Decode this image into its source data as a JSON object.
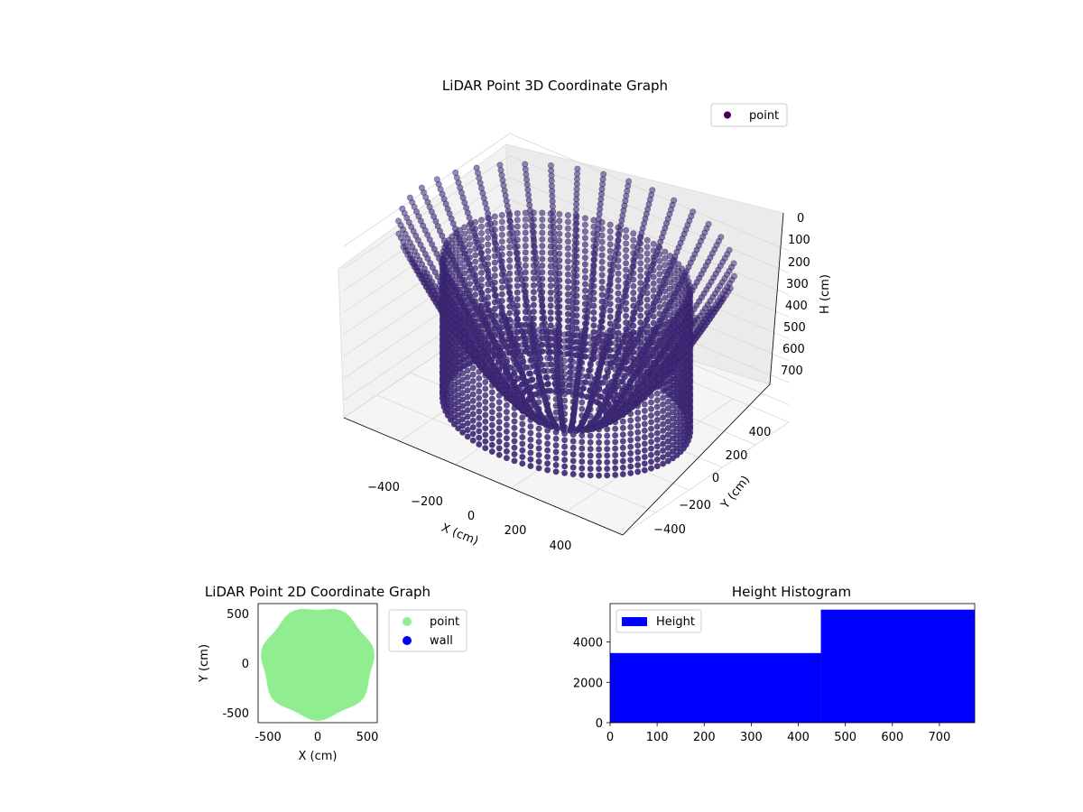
{
  "chart_data": [
    {
      "type": "scatter3d",
      "title": "LiDAR Point 3D Coordinate Graph",
      "xlabel": "X (cm)",
      "ylabel": "Y (cm)",
      "zlabel": "H (cm)",
      "x_ticks": [
        "−400",
        "−200",
        "0",
        "200",
        "400"
      ],
      "y_ticks": [
        "−400",
        "−200",
        "0",
        "200",
        "400"
      ],
      "z_ticks": [
        "0",
        "100",
        "200",
        "300",
        "400",
        "500",
        "600",
        "700"
      ],
      "xlim": [
        -550,
        550
      ],
      "ylim": [
        -550,
        550
      ],
      "zlim": [
        0,
        780
      ],
      "z_inverted": true,
      "grid": true,
      "legend": {
        "placement": "top-right",
        "entries": [
          {
            "label": "point",
            "color": "#440154"
          }
        ]
      },
      "point_color": "#3f2a7a",
      "wall_radius": 420,
      "num_beams": 40
    },
    {
      "type": "scatter",
      "title": "LiDAR Point 2D Coordinate Graph",
      "xlabel": "X (cm)",
      "ylabel": "Y (cm)",
      "x_ticks": [
        -500,
        0,
        500
      ],
      "y_ticks": [
        -500,
        0,
        500
      ],
      "xlim": [
        -600,
        600
      ],
      "ylim": [
        -600,
        600
      ],
      "legend": {
        "placement": "outside-right",
        "entries": [
          {
            "label": "point",
            "color": "#90ee90"
          },
          {
            "label": "wall",
            "color": "#0000ff"
          }
        ]
      },
      "filled_region_radius": 560
    },
    {
      "type": "histogram",
      "title": "Height Histogram",
      "x_ticks": [
        0,
        100,
        200,
        300,
        400,
        500,
        600,
        700
      ],
      "y_ticks": [
        0,
        2000,
        4000
      ],
      "xlim": [
        0,
        775
      ],
      "ylim": [
        0,
        5900
      ],
      "bins": [
        {
          "x0": 0,
          "x1": 448,
          "count": 3450
        },
        {
          "x0": 448,
          "x1": 775,
          "count": 5600
        }
      ],
      "color": "#0000ff",
      "legend": {
        "placement": "top-left",
        "entries": [
          {
            "label": "Height",
            "color": "#0000ff"
          }
        ]
      }
    }
  ]
}
